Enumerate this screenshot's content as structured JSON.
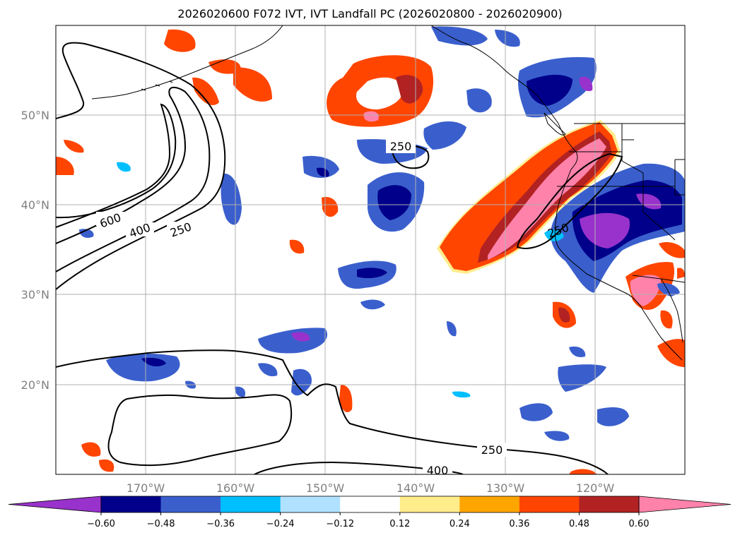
{
  "title": "2026020600 F072 IVT, IVT Landfall PC (2026020800 - 2026020900)",
  "lat_labels": [
    "50°N",
    "40°N",
    "30°N",
    "20°N"
  ],
  "lon_labels": [
    "170°W",
    "160°W",
    "150°W",
    "140°W",
    "130°W",
    "120°W"
  ],
  "contour_labels": [
    "600",
    "400",
    "250",
    "250",
    "250",
    "250",
    "400"
  ],
  "colorbar": {
    "tick_labels": [
      "−0.60",
      "−0.48",
      "−0.36",
      "−0.24",
      "−0.12",
      "0.12",
      "0.24",
      "0.36",
      "0.48",
      "0.60"
    ],
    "colors": [
      "#9932cc",
      "#00008b",
      "#3a5fcd",
      "#00bfff",
      "#b0e2ff",
      "#ffffff",
      "#ffec8b",
      "#ffa500",
      "#ff4500",
      "#b22222",
      "#ff82ab"
    ]
  },
  "colors": {
    "strong_negative": "#9932cc",
    "negative": "#3a5fcd",
    "positive": "#ff4500",
    "strong_positive": "#ff82ab",
    "grid": "#b0b0b0"
  }
}
